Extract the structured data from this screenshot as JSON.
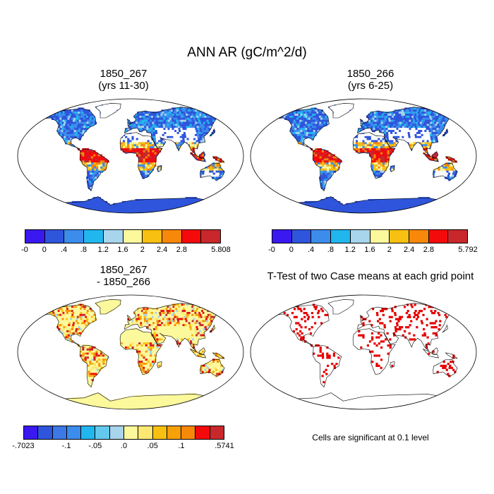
{
  "title": "ANN AR (gC/m^2/d)",
  "chart_data": [
    {
      "type": "heatmap",
      "title_line1": "1850_267",
      "title_line2": "(yrs 11-30)",
      "colorbar": {
        "labels": [
          "-0",
          "0",
          ".4",
          ".8",
          "1.2",
          "1.6",
          "2",
          "2.4",
          "2.8",
          "",
          "5.808"
        ],
        "colors": [
          "#3a19f0",
          "#2f55dc",
          "#3c8cec",
          "#21b7ee",
          "#a8d4ec",
          "#fcf89c",
          "#f8c010",
          "#f8880a",
          "#f40a0a",
          "#c8282c"
        ],
        "min": -0.0,
        "max": 5.808
      }
    },
    {
      "type": "heatmap",
      "title_line1": "1850_266",
      "title_line2": "(yrs 6-25)",
      "colorbar": {
        "labels": [
          "-0",
          "0",
          ".4",
          ".8",
          "1.2",
          "1.6",
          "2",
          "2.4",
          "2.8",
          "",
          "5.792"
        ],
        "colors": [
          "#3a19f0",
          "#2f55dc",
          "#3c8cec",
          "#21b7ee",
          "#a8d4ec",
          "#fcf89c",
          "#f8c010",
          "#f8880a",
          "#f40a0a",
          "#c8282c"
        ],
        "min": -0.0,
        "max": 5.792
      }
    },
    {
      "type": "heatmap",
      "title_line1": "1850_267",
      "title_line2": "- 1850_266",
      "colorbar": {
        "labels": [
          "-.7023",
          "",
          "",
          "-.1",
          "",
          "-.05",
          "",
          ".0",
          "",
          ".05",
          "",
          ".1",
          "",
          "",
          ".5741"
        ],
        "colors": [
          "#3a19f0",
          "#2f55dc",
          "#3c78e6",
          "#3c8cec",
          "#21b7ee",
          "#64c8ec",
          "#a8d4ec",
          "#fcf89c",
          "#fce872",
          "#f8c010",
          "#f8a00a",
          "#f8880a",
          "#f40a0a",
          "#c8282c"
        ],
        "min": -0.7023,
        "max": 0.5741
      }
    },
    {
      "type": "heatmap",
      "title": "T-Test of two Case means at each grid point",
      "significance_level": "0.1",
      "note": "Cells are significant at 0.1 level",
      "marker_color": "#e60000"
    }
  ]
}
